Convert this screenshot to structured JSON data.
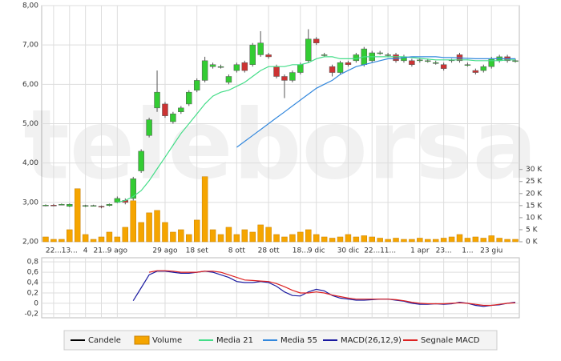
{
  "chart_data": [
    {
      "type": "candlestick",
      "watermark": "teleborsa",
      "grid": true,
      "categories": [
        null,
        "22...",
        null,
        "13...",
        null,
        "4",
        null,
        "21...",
        null,
        "9 ago",
        null,
        null,
        null,
        null,
        null,
        "29 ago",
        null,
        null,
        null,
        "18 set",
        null,
        null,
        null,
        null,
        "8 ott",
        null,
        null,
        null,
        "28 ott",
        null,
        null,
        null,
        "18...",
        null,
        "9 dic",
        null,
        null,
        null,
        "30 dic",
        null,
        null,
        "22...",
        null,
        "11...",
        null,
        null,
        null,
        "1 apr",
        null,
        null,
        "23...",
        null,
        null,
        "1...",
        null,
        null,
        "23 giu",
        null,
        null,
        null
      ],
      "ylim": [
        2,
        8
      ],
      "yticks": [
        {
          "value": 2,
          "label": "2,00"
        },
        {
          "value": 3,
          "label": "3,00"
        },
        {
          "value": 4,
          "label": "4,00"
        },
        {
          "value": 5,
          "label": "5,00"
        },
        {
          "value": 6,
          "label": "6,00"
        },
        {
          "value": 7,
          "label": "7,00"
        },
        {
          "value": 8,
          "label": "8,00"
        }
      ],
      "y2lim": [
        0,
        98000
      ],
      "y2ticks": [
        {
          "value": 0,
          "label": "0 K"
        },
        {
          "value": 5000,
          "label": "5 K"
        },
        {
          "value": 10000,
          "label": "10 K"
        },
        {
          "value": 15000,
          "label": "15 K"
        },
        {
          "value": 20000,
          "label": "20 K"
        },
        {
          "value": 25000,
          "label": "25 K"
        },
        {
          "value": 30000,
          "label": "30 K"
        }
      ],
      "series": [
        {
          "name": "Candele",
          "color": "#000000",
          "up_color": "#33cc33",
          "down_color": "#cc3333",
          "open": [
            2.92,
            2.93,
            2.95,
            2.9,
            2.93,
            2.9,
            2.92,
            2.9,
            2.92,
            3.0,
            3.05,
            3.1,
            3.8,
            4.7,
            5.4,
            5.5,
            5.05,
            5.3,
            5.5,
            5.85,
            6.1,
            6.45,
            6.45,
            6.05,
            6.35,
            6.55,
            6.5,
            6.75,
            6.75,
            6.45,
            6.2,
            6.1,
            6.3,
            6.6,
            7.15,
            6.75,
            6.45,
            6.3,
            6.55,
            6.6,
            6.5,
            6.6,
            6.8,
            6.75,
            6.75,
            6.6,
            6.6,
            6.6,
            6.6,
            6.55,
            6.5,
            6.6,
            6.75,
            6.5,
            6.35,
            6.35,
            6.45,
            6.6,
            6.7,
            6.6
          ],
          "high": [
            2.95,
            2.96,
            2.97,
            2.97,
            2.95,
            2.94,
            2.94,
            2.92,
            2.97,
            3.15,
            3.1,
            3.65,
            4.35,
            5.15,
            6.35,
            5.55,
            5.3,
            5.45,
            5.85,
            6.15,
            6.7,
            6.55,
            6.5,
            6.25,
            6.55,
            6.6,
            7.05,
            7.35,
            6.8,
            6.5,
            6.25,
            6.35,
            6.55,
            7.4,
            7.2,
            6.8,
            6.5,
            6.6,
            6.6,
            6.8,
            6.95,
            6.85,
            6.85,
            6.8,
            6.8,
            6.75,
            6.65,
            6.65,
            6.65,
            6.6,
            6.55,
            6.65,
            6.8,
            6.55,
            6.4,
            6.5,
            6.7,
            6.75,
            6.75,
            6.65
          ],
          "low": [
            2.9,
            2.9,
            2.93,
            2.88,
            2.85,
            2.88,
            2.9,
            2.85,
            2.9,
            2.98,
            2.95,
            3.05,
            3.75,
            4.65,
            5.3,
            5.15,
            5.0,
            5.25,
            5.45,
            5.8,
            6.05,
            6.4,
            6.4,
            6.0,
            6.3,
            6.3,
            6.45,
            6.7,
            6.65,
            6.15,
            5.65,
            6.05,
            6.25,
            6.55,
            7.0,
            6.7,
            6.2,
            6.25,
            6.45,
            6.55,
            6.45,
            6.55,
            6.75,
            6.7,
            6.55,
            6.55,
            6.45,
            6.55,
            6.55,
            6.5,
            6.35,
            6.55,
            6.55,
            6.45,
            6.25,
            6.3,
            6.4,
            6.55,
            6.55,
            6.55
          ],
          "close": [
            2.93,
            2.92,
            2.95,
            2.95,
            2.88,
            2.92,
            2.92,
            2.88,
            2.95,
            3.1,
            3.0,
            3.6,
            4.3,
            5.1,
            5.8,
            5.2,
            5.25,
            5.4,
            5.8,
            6.1,
            6.6,
            6.5,
            6.45,
            6.2,
            6.5,
            6.35,
            7.0,
            7.05,
            6.7,
            6.2,
            6.1,
            6.3,
            6.5,
            7.15,
            7.05,
            6.75,
            6.3,
            6.55,
            6.5,
            6.75,
            6.9,
            6.8,
            6.8,
            6.75,
            6.6,
            6.7,
            6.5,
            6.62,
            6.6,
            6.55,
            6.4,
            6.62,
            6.6,
            6.5,
            6.3,
            6.45,
            6.65,
            6.7,
            6.6,
            6.6
          ]
        },
        {
          "name": "Volume",
          "color": "#f5a500",
          "axis": "y2",
          "values": [
            2000,
            1000,
            1000,
            5000,
            22000,
            3000,
            1000,
            2000,
            4000,
            2000,
            6000,
            17000,
            8000,
            12000,
            13000,
            8000,
            4000,
            5000,
            3000,
            9000,
            27000,
            5000,
            3000,
            6000,
            3000,
            5000,
            4000,
            7000,
            6000,
            3000,
            2000,
            3000,
            4000,
            5000,
            3000,
            2000,
            1500,
            2000,
            3000,
            2000,
            2500,
            2000,
            1500,
            1000,
            1500,
            1000,
            1000,
            1500,
            1000,
            1000,
            1500,
            2000,
            3000,
            1500,
            2000,
            1500,
            2500,
            1500,
            1000,
            1000
          ]
        },
        {
          "name": "Media 21",
          "color": "#44dd88",
          "values": [
            null,
            null,
            null,
            null,
            null,
            null,
            null,
            null,
            null,
            3.0,
            3.05,
            3.15,
            3.3,
            3.55,
            3.85,
            4.15,
            4.45,
            4.75,
            5.0,
            5.25,
            5.5,
            5.7,
            5.8,
            5.85,
            5.95,
            6.05,
            6.2,
            6.35,
            6.45,
            6.45,
            6.45,
            6.5,
            6.5,
            6.55,
            6.65,
            6.7,
            6.7,
            6.65,
            6.65,
            6.65,
            6.7,
            6.7,
            6.7,
            6.7,
            6.7,
            6.7,
            6.68,
            6.66,
            6.64,
            6.62,
            6.62,
            6.62,
            6.62,
            6.62,
            6.6,
            6.6,
            6.6,
            6.6,
            6.62,
            6.62
          ]
        },
        {
          "name": "Media 55",
          "color": "#3388dd",
          "values": [
            null,
            null,
            null,
            null,
            null,
            null,
            null,
            null,
            null,
            null,
            null,
            null,
            null,
            null,
            null,
            null,
            null,
            null,
            null,
            null,
            null,
            null,
            null,
            null,
            4.4,
            4.55,
            4.7,
            4.85,
            5.0,
            5.15,
            5.3,
            5.45,
            5.6,
            5.75,
            5.9,
            6.0,
            6.1,
            6.25,
            6.35,
            6.45,
            6.5,
            6.55,
            6.6,
            6.65,
            6.65,
            6.68,
            6.7,
            6.7,
            6.7,
            6.7,
            6.68,
            6.68,
            6.67,
            6.66,
            6.65,
            6.65,
            6.65,
            6.65,
            6.65,
            6.65
          ]
        }
      ]
    },
    {
      "type": "line",
      "grid": true,
      "ylim": [
        -0.28,
        0.88
      ],
      "yticks": [
        {
          "value": -0.2,
          "label": "-0,2"
        },
        0,
        {
          "value": 0.2,
          "label": "0,2"
        },
        {
          "value": 0.4,
          "label": "0,4"
        },
        {
          "value": 0.6,
          "label": "0,6"
        },
        {
          "value": 0.8,
          "label": "0,8"
        }
      ],
      "series": [
        {
          "name": "MACD(26,12,9)",
          "color": "#1a1aa0",
          "values": [
            null,
            null,
            null,
            null,
            null,
            null,
            null,
            null,
            null,
            null,
            null,
            0.05,
            0.3,
            0.55,
            0.62,
            0.62,
            0.6,
            0.58,
            0.58,
            0.6,
            0.62,
            0.6,
            0.55,
            0.5,
            0.42,
            0.4,
            0.4,
            0.42,
            0.4,
            0.33,
            0.22,
            0.15,
            0.14,
            0.22,
            0.27,
            0.24,
            0.15,
            0.1,
            0.08,
            0.06,
            0.06,
            0.07,
            0.08,
            0.08,
            0.06,
            0.04,
            0.0,
            -0.02,
            -0.02,
            -0.01,
            -0.02,
            -0.01,
            0.02,
            0.0,
            -0.04,
            -0.06,
            -0.04,
            -0.03,
            0.0,
            0.02
          ]
        },
        {
          "name": "Segnale MACD",
          "color": "#dd2222",
          "values": [
            null,
            null,
            null,
            null,
            null,
            null,
            null,
            null,
            null,
            null,
            null,
            null,
            null,
            0.6,
            0.63,
            0.63,
            0.62,
            0.6,
            0.6,
            0.6,
            0.62,
            0.62,
            0.6,
            0.55,
            0.5,
            0.45,
            0.44,
            0.43,
            0.42,
            0.38,
            0.32,
            0.25,
            0.2,
            0.2,
            0.22,
            0.2,
            0.16,
            0.13,
            0.1,
            0.08,
            0.08,
            0.08,
            0.08,
            0.08,
            0.07,
            0.05,
            0.02,
            0.0,
            -0.01,
            -0.01,
            -0.01,
            0.0,
            0.01,
            0.0,
            -0.02,
            -0.04,
            -0.04,
            -0.02,
            0.0,
            0.01
          ]
        }
      ]
    }
  ]
}
